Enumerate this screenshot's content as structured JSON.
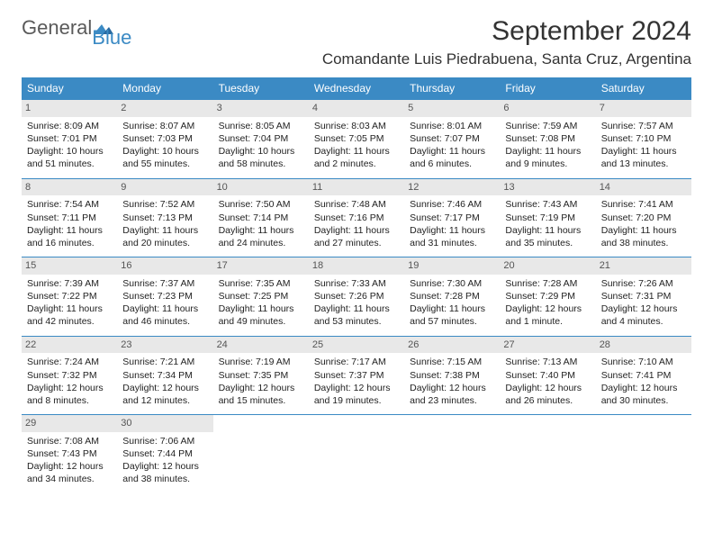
{
  "logo": {
    "text1": "General",
    "text2": "Blue"
  },
  "title": "September 2024",
  "location": "Comandante Luis Piedrabuena, Santa Cruz, Argentina",
  "colors": {
    "header_bg": "#3b8ac4",
    "header_text": "#ffffff",
    "daynum_bg": "#e8e8e8",
    "daynum_text": "#555555",
    "border": "#3b8ac4",
    "logo_gray": "#5a5a5a",
    "logo_blue": "#3b8ac4"
  },
  "weekdays": [
    "Sunday",
    "Monday",
    "Tuesday",
    "Wednesday",
    "Thursday",
    "Friday",
    "Saturday"
  ],
  "weeks": [
    [
      {
        "day": "1",
        "sunrise": "8:09 AM",
        "sunset": "7:01 PM",
        "daylight": "10 hours and 51 minutes."
      },
      {
        "day": "2",
        "sunrise": "8:07 AM",
        "sunset": "7:03 PM",
        "daylight": "10 hours and 55 minutes."
      },
      {
        "day": "3",
        "sunrise": "8:05 AM",
        "sunset": "7:04 PM",
        "daylight": "10 hours and 58 minutes."
      },
      {
        "day": "4",
        "sunrise": "8:03 AM",
        "sunset": "7:05 PM",
        "daylight": "11 hours and 2 minutes."
      },
      {
        "day": "5",
        "sunrise": "8:01 AM",
        "sunset": "7:07 PM",
        "daylight": "11 hours and 6 minutes."
      },
      {
        "day": "6",
        "sunrise": "7:59 AM",
        "sunset": "7:08 PM",
        "daylight": "11 hours and 9 minutes."
      },
      {
        "day": "7",
        "sunrise": "7:57 AM",
        "sunset": "7:10 PM",
        "daylight": "11 hours and 13 minutes."
      }
    ],
    [
      {
        "day": "8",
        "sunrise": "7:54 AM",
        "sunset": "7:11 PM",
        "daylight": "11 hours and 16 minutes."
      },
      {
        "day": "9",
        "sunrise": "7:52 AM",
        "sunset": "7:13 PM",
        "daylight": "11 hours and 20 minutes."
      },
      {
        "day": "10",
        "sunrise": "7:50 AM",
        "sunset": "7:14 PM",
        "daylight": "11 hours and 24 minutes."
      },
      {
        "day": "11",
        "sunrise": "7:48 AM",
        "sunset": "7:16 PM",
        "daylight": "11 hours and 27 minutes."
      },
      {
        "day": "12",
        "sunrise": "7:46 AM",
        "sunset": "7:17 PM",
        "daylight": "11 hours and 31 minutes."
      },
      {
        "day": "13",
        "sunrise": "7:43 AM",
        "sunset": "7:19 PM",
        "daylight": "11 hours and 35 minutes."
      },
      {
        "day": "14",
        "sunrise": "7:41 AM",
        "sunset": "7:20 PM",
        "daylight": "11 hours and 38 minutes."
      }
    ],
    [
      {
        "day": "15",
        "sunrise": "7:39 AM",
        "sunset": "7:22 PM",
        "daylight": "11 hours and 42 minutes."
      },
      {
        "day": "16",
        "sunrise": "7:37 AM",
        "sunset": "7:23 PM",
        "daylight": "11 hours and 46 minutes."
      },
      {
        "day": "17",
        "sunrise": "7:35 AM",
        "sunset": "7:25 PM",
        "daylight": "11 hours and 49 minutes."
      },
      {
        "day": "18",
        "sunrise": "7:33 AM",
        "sunset": "7:26 PM",
        "daylight": "11 hours and 53 minutes."
      },
      {
        "day": "19",
        "sunrise": "7:30 AM",
        "sunset": "7:28 PM",
        "daylight": "11 hours and 57 minutes."
      },
      {
        "day": "20",
        "sunrise": "7:28 AM",
        "sunset": "7:29 PM",
        "daylight": "12 hours and 1 minute."
      },
      {
        "day": "21",
        "sunrise": "7:26 AM",
        "sunset": "7:31 PM",
        "daylight": "12 hours and 4 minutes."
      }
    ],
    [
      {
        "day": "22",
        "sunrise": "7:24 AM",
        "sunset": "7:32 PM",
        "daylight": "12 hours and 8 minutes."
      },
      {
        "day": "23",
        "sunrise": "7:21 AM",
        "sunset": "7:34 PM",
        "daylight": "12 hours and 12 minutes."
      },
      {
        "day": "24",
        "sunrise": "7:19 AM",
        "sunset": "7:35 PM",
        "daylight": "12 hours and 15 minutes."
      },
      {
        "day": "25",
        "sunrise": "7:17 AM",
        "sunset": "7:37 PM",
        "daylight": "12 hours and 19 minutes."
      },
      {
        "day": "26",
        "sunrise": "7:15 AM",
        "sunset": "7:38 PM",
        "daylight": "12 hours and 23 minutes."
      },
      {
        "day": "27",
        "sunrise": "7:13 AM",
        "sunset": "7:40 PM",
        "daylight": "12 hours and 26 minutes."
      },
      {
        "day": "28",
        "sunrise": "7:10 AM",
        "sunset": "7:41 PM",
        "daylight": "12 hours and 30 minutes."
      }
    ],
    [
      {
        "day": "29",
        "sunrise": "7:08 AM",
        "sunset": "7:43 PM",
        "daylight": "12 hours and 34 minutes."
      },
      {
        "day": "30",
        "sunrise": "7:06 AM",
        "sunset": "7:44 PM",
        "daylight": "12 hours and 38 minutes."
      },
      null,
      null,
      null,
      null,
      null
    ]
  ],
  "labels": {
    "sunrise_prefix": "Sunrise: ",
    "sunset_prefix": "Sunset: ",
    "daylight_prefix": "Daylight: "
  }
}
